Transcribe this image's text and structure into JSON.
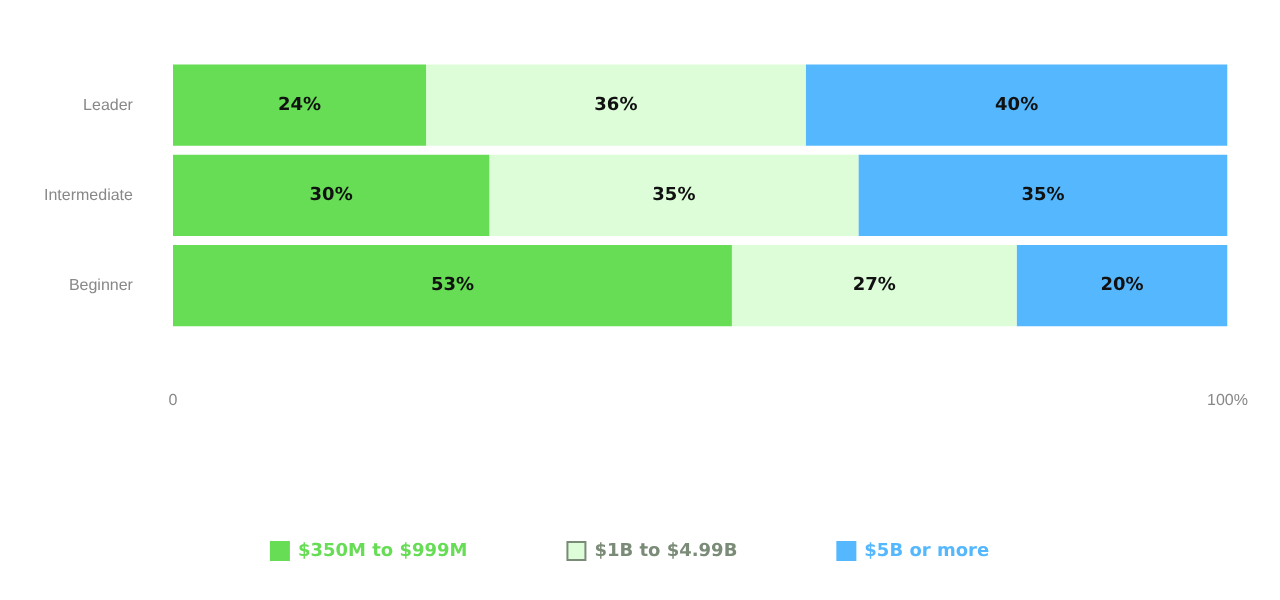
{
  "chart_data": {
    "type": "bar",
    "orientation": "horizontal",
    "stacked": true,
    "categories": [
      "Leader",
      "Intermediate",
      "Beginner"
    ],
    "series": [
      {
        "name": "$350M to $999M",
        "color": "#66dd55",
        "values": [
          24,
          30,
          53
        ],
        "value_labels": [
          "24%",
          "30%",
          "53%"
        ]
      },
      {
        "name": "$1B to $4.99B",
        "color": "#ddfdd8",
        "values": [
          36,
          35,
          27
        ],
        "value_labels": [
          "36%",
          "35%",
          "27%"
        ]
      },
      {
        "name": "$5B or more",
        "color": "#55b8ff",
        "values": [
          40,
          35,
          20
        ],
        "value_labels": [
          "40%",
          "35%",
          "20%"
        ]
      }
    ],
    "xlim": [
      0,
      100
    ],
    "xticks": [
      0,
      {
        "value": 100,
        "label": "100%"
      }
    ],
    "legend": "bottom"
  }
}
